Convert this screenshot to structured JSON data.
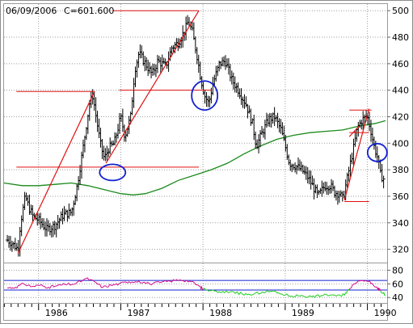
{
  "header": {
    "date": "06/09/2006",
    "close_label": "C=601.600"
  },
  "colors": {
    "price_bars": "#000000",
    "moving_average": "#1a8a1a",
    "trendlines": "#e01010",
    "circles": "#1020d0",
    "indicator_line": "#d01090",
    "indicator_line_2": "#22cc22",
    "indicator_bands": "#1020d0",
    "grid": "#9e9e9e"
  },
  "chart_data": [
    {
      "type": "ohlc",
      "x_ticks": [
        "1986",
        "1987",
        "1988",
        "1989",
        "1990"
      ],
      "y_ticks": [
        "320",
        "340",
        "360",
        "380",
        "400",
        "420",
        "440",
        "460",
        "480",
        "500"
      ],
      "ylim": [
        310,
        505
      ],
      "grid": true,
      "series": [
        {
          "kind": "price_path",
          "points": [
            {
              "x": 1985.62,
              "y": 327
            },
            {
              "x": 1985.67,
              "y": 325
            },
            {
              "x": 1985.72,
              "y": 322
            },
            {
              "x": 1985.75,
              "y": 320
            },
            {
              "x": 1985.78,
              "y": 340
            },
            {
              "x": 1985.84,
              "y": 360
            },
            {
              "x": 1985.88,
              "y": 352
            },
            {
              "x": 1985.93,
              "y": 345
            },
            {
              "x": 1986.0,
              "y": 342
            },
            {
              "x": 1986.1,
              "y": 335
            },
            {
              "x": 1986.2,
              "y": 338
            },
            {
              "x": 1986.3,
              "y": 346
            },
            {
              "x": 1986.4,
              "y": 348
            },
            {
              "x": 1986.47,
              "y": 368
            },
            {
              "x": 1986.55,
              "y": 400
            },
            {
              "x": 1986.62,
              "y": 430
            },
            {
              "x": 1986.66,
              "y": 436
            },
            {
              "x": 1986.7,
              "y": 420
            },
            {
              "x": 1986.75,
              "y": 400
            },
            {
              "x": 1986.8,
              "y": 388
            },
            {
              "x": 1986.85,
              "y": 396
            },
            {
              "x": 1986.92,
              "y": 400
            },
            {
              "x": 1987.0,
              "y": 420
            },
            {
              "x": 1987.05,
              "y": 405
            },
            {
              "x": 1987.12,
              "y": 420
            },
            {
              "x": 1987.17,
              "y": 455
            },
            {
              "x": 1987.22,
              "y": 468
            },
            {
              "x": 1987.3,
              "y": 460
            },
            {
              "x": 1987.38,
              "y": 452
            },
            {
              "x": 1987.45,
              "y": 462
            },
            {
              "x": 1987.55,
              "y": 458
            },
            {
              "x": 1987.62,
              "y": 472
            },
            {
              "x": 1987.7,
              "y": 476
            },
            {
              "x": 1987.78,
              "y": 485
            },
            {
              "x": 1987.82,
              "y": 492
            },
            {
              "x": 1987.87,
              "y": 484
            },
            {
              "x": 1987.93,
              "y": 465
            },
            {
              "x": 1987.97,
              "y": 450
            },
            {
              "x": 1988.02,
              "y": 436
            },
            {
              "x": 1988.07,
              "y": 430
            },
            {
              "x": 1988.12,
              "y": 445
            },
            {
              "x": 1988.2,
              "y": 460
            },
            {
              "x": 1988.27,
              "y": 462
            },
            {
              "x": 1988.35,
              "y": 448
            },
            {
              "x": 1988.43,
              "y": 440
            },
            {
              "x": 1988.52,
              "y": 430
            },
            {
              "x": 1988.6,
              "y": 415
            },
            {
              "x": 1988.65,
              "y": 398
            },
            {
              "x": 1988.72,
              "y": 408
            },
            {
              "x": 1988.8,
              "y": 418
            },
            {
              "x": 1988.87,
              "y": 420
            },
            {
              "x": 1988.95,
              "y": 410
            },
            {
              "x": 1989.0,
              "y": 398
            },
            {
              "x": 1989.05,
              "y": 385
            },
            {
              "x": 1989.12,
              "y": 383
            },
            {
              "x": 1989.2,
              "y": 380
            },
            {
              "x": 1989.28,
              "y": 374
            },
            {
              "x": 1989.35,
              "y": 366
            },
            {
              "x": 1989.4,
              "y": 360
            },
            {
              "x": 1989.48,
              "y": 368
            },
            {
              "x": 1989.55,
              "y": 368
            },
            {
              "x": 1989.6,
              "y": 363
            },
            {
              "x": 1989.66,
              "y": 362
            },
            {
              "x": 1989.7,
              "y": 358
            },
            {
              "x": 1989.76,
              "y": 375
            },
            {
              "x": 1989.82,
              "y": 393
            },
            {
              "x": 1989.88,
              "y": 412
            },
            {
              "x": 1989.94,
              "y": 418
            },
            {
              "x": 1990.0,
              "y": 420
            },
            {
              "x": 1990.04,
              "y": 410
            },
            {
              "x": 1990.08,
              "y": 398
            },
            {
              "x": 1990.12,
              "y": 390
            },
            {
              "x": 1990.16,
              "y": 376
            },
            {
              "x": 1990.2,
              "y": 373
            }
          ]
        },
        {
          "kind": "moving_average",
          "points": [
            {
              "x": 1985.58,
              "y": 370
            },
            {
              "x": 1985.8,
              "y": 368
            },
            {
              "x": 1986.0,
              "y": 368
            },
            {
              "x": 1986.2,
              "y": 369
            },
            {
              "x": 1986.4,
              "y": 370
            },
            {
              "x": 1986.6,
              "y": 368
            },
            {
              "x": 1986.8,
              "y": 365
            },
            {
              "x": 1987.0,
              "y": 362
            },
            {
              "x": 1987.15,
              "y": 361
            },
            {
              "x": 1987.3,
              "y": 362
            },
            {
              "x": 1987.5,
              "y": 366
            },
            {
              "x": 1987.7,
              "y": 372
            },
            {
              "x": 1987.9,
              "y": 376
            },
            {
              "x": 1988.1,
              "y": 380
            },
            {
              "x": 1988.3,
              "y": 385
            },
            {
              "x": 1988.5,
              "y": 392
            },
            {
              "x": 1988.7,
              "y": 398
            },
            {
              "x": 1988.9,
              "y": 403
            },
            {
              "x": 1989.1,
              "y": 406
            },
            {
              "x": 1989.3,
              "y": 408
            },
            {
              "x": 1989.5,
              "y": 409
            },
            {
              "x": 1989.7,
              "y": 410
            },
            {
              "x": 1989.9,
              "y": 413
            },
            {
              "x": 1990.1,
              "y": 415
            },
            {
              "x": 1990.22,
              "y": 417
            }
          ]
        }
      ],
      "annotations": {
        "horizontal_lines": [
          {
            "x1": 1986.9,
            "x2": 1987.95,
            "y": 500
          },
          {
            "x1": 1985.73,
            "x2": 1986.68,
            "y": 439
          },
          {
            "x1": 1986.98,
            "x2": 1988.1,
            "y": 440
          },
          {
            "x1": 1985.73,
            "x2": 1987.95,
            "y": 382
          },
          {
            "x1": 1989.78,
            "x2": 1990.05,
            "y": 425
          },
          {
            "x1": 1989.78,
            "x2": 1990.02,
            "y": 408
          },
          {
            "x1": 1989.72,
            "x2": 1990.02,
            "y": 356
          }
        ],
        "trend_lines": [
          {
            "x1": 1985.75,
            "y1": 317,
            "x2": 1986.68,
            "y2": 439
          },
          {
            "x1": 1986.82,
            "y1": 385,
            "x2": 1987.95,
            "y2": 500
          },
          {
            "x1": 1989.72,
            "y1": 357,
            "x2": 1990.02,
            "y2": 426
          },
          {
            "x1": 1989.78,
            "y1": 405,
            "x2": 1989.9,
            "y2": 413
          }
        ],
        "circles": [
          {
            "x": 1986.9,
            "y": 378
          },
          {
            "x": 1988.02,
            "y": 436
          },
          {
            "x": 1990.12,
            "y": 393
          }
        ]
      }
    },
    {
      "type": "line",
      "title": "",
      "y_ticks": [
        "40",
        "60",
        "80"
      ],
      "ylim": [
        32,
        90
      ],
      "bands": [
        65,
        51
      ],
      "series": [
        {
          "kind": "indicator",
          "points": [
            {
              "x": 1985.62,
              "y": 54
            },
            {
              "x": 1985.72,
              "y": 55
            },
            {
              "x": 1985.82,
              "y": 60
            },
            {
              "x": 1985.92,
              "y": 56
            },
            {
              "x": 1986.02,
              "y": 58
            },
            {
              "x": 1986.12,
              "y": 55
            },
            {
              "x": 1986.22,
              "y": 57
            },
            {
              "x": 1986.32,
              "y": 59
            },
            {
              "x": 1986.45,
              "y": 60
            },
            {
              "x": 1986.58,
              "y": 68
            },
            {
              "x": 1986.68,
              "y": 63
            },
            {
              "x": 1986.78,
              "y": 55
            },
            {
              "x": 1986.88,
              "y": 58
            },
            {
              "x": 1986.98,
              "y": 60
            },
            {
              "x": 1987.1,
              "y": 63
            },
            {
              "x": 1987.22,
              "y": 64
            },
            {
              "x": 1987.35,
              "y": 60
            },
            {
              "x": 1987.48,
              "y": 62
            },
            {
              "x": 1987.6,
              "y": 64
            },
            {
              "x": 1987.72,
              "y": 66
            },
            {
              "x": 1987.84,
              "y": 64
            },
            {
              "x": 1987.95,
              "y": 57
            },
            {
              "x": 1988.0,
              "y": 52
            }
          ]
        },
        {
          "kind": "indicator",
          "points": [
            {
              "x": 1988.0,
              "y": 52
            },
            {
              "x": 1988.1,
              "y": 50
            },
            {
              "x": 1988.22,
              "y": 47
            },
            {
              "x": 1988.35,
              "y": 49
            },
            {
              "x": 1988.48,
              "y": 45
            },
            {
              "x": 1988.6,
              "y": 44
            },
            {
              "x": 1988.72,
              "y": 48
            },
            {
              "x": 1988.84,
              "y": 49
            },
            {
              "x": 1988.96,
              "y": 45
            },
            {
              "x": 1989.08,
              "y": 42
            },
            {
              "x": 1989.2,
              "y": 43
            },
            {
              "x": 1989.32,
              "y": 41
            },
            {
              "x": 1989.44,
              "y": 43
            },
            {
              "x": 1989.56,
              "y": 44
            },
            {
              "x": 1989.68,
              "y": 42
            },
            {
              "x": 1989.74,
              "y": 47
            },
            {
              "x": 1989.78,
              "y": 52
            }
          ]
        },
        {
          "kind": "indicator",
          "points": [
            {
              "x": 1989.78,
              "y": 52
            },
            {
              "x": 1989.85,
              "y": 60
            },
            {
              "x": 1989.92,
              "y": 65
            },
            {
              "x": 1990.0,
              "y": 64
            },
            {
              "x": 1990.06,
              "y": 60
            },
            {
              "x": 1990.12,
              "y": 54
            },
            {
              "x": 1990.16,
              "y": 50
            }
          ]
        },
        {
          "kind": "indicator",
          "points": [
            {
              "x": 1990.16,
              "y": 50
            },
            {
              "x": 1990.22,
              "y": 44
            }
          ]
        }
      ]
    }
  ]
}
